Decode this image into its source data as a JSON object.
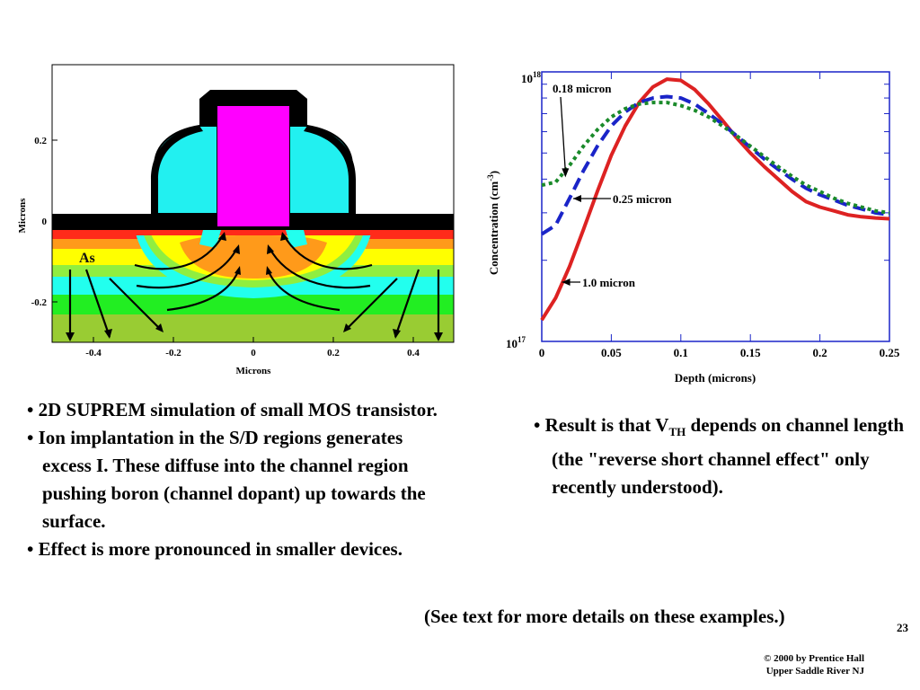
{
  "left_figure": {
    "y_ticks": [
      "0.2",
      "0",
      "-0.2"
    ],
    "x_ticks": [
      "-0.4",
      "-0.2",
      "0",
      "0.2",
      "0.4"
    ],
    "y_label": "Microns",
    "x_label": "Microns",
    "as_label": "As"
  },
  "chart_data": {
    "type": "line",
    "title": "",
    "xlabel": "Depth (microns)",
    "ylabel": "Concentration (cm-3)",
    "ylabel_base": "Concentration (cm",
    "ylabel_sup": "-3",
    "ylabel_end": ")",
    "xlim": [
      0,
      0.25
    ],
    "ylim": [
      1e+17,
      1e+18
    ],
    "log_y": true,
    "x_ticks": [
      "0",
      "0.05",
      "0.1",
      "0.15",
      "0.2",
      "0.25"
    ],
    "y_tick_top": {
      "base": "10",
      "exp": "18"
    },
    "y_tick_bottom": {
      "base": "10",
      "exp": "17"
    },
    "series": [
      {
        "name": "1.0 micron",
        "color": "#dd2222",
        "style": "solid",
        "x": [
          0,
          0.01,
          0.02,
          0.03,
          0.04,
          0.05,
          0.06,
          0.07,
          0.08,
          0.09,
          0.1,
          0.11,
          0.12,
          0.13,
          0.14,
          0.15,
          0.16,
          0.17,
          0.18,
          0.19,
          0.2,
          0.21,
          0.22,
          0.23,
          0.24,
          0.25
        ],
        "y": [
          1.2e+17,
          1.45e+17,
          1.9e+17,
          2.6e+17,
          3.6e+17,
          4.9e+17,
          6.3e+17,
          7.7e+17,
          8.8e+17,
          9.4e+17,
          9.3e+17,
          8.6e+17,
          7.6e+17,
          6.6e+17,
          5.7e+17,
          5e+17,
          4.45e+17,
          4e+17,
          3.6e+17,
          3.3e+17,
          3.15e+17,
          3.05e+17,
          2.95e+17,
          2.9e+17,
          2.87e+17,
          2.85e+17
        ]
      },
      {
        "name": "0.25 micron",
        "color": "#1a24c8",
        "style": "dashed",
        "x": [
          0,
          0.01,
          0.02,
          0.03,
          0.04,
          0.05,
          0.06,
          0.07,
          0.08,
          0.09,
          0.1,
          0.11,
          0.12,
          0.13,
          0.14,
          0.15,
          0.16,
          0.17,
          0.18,
          0.19,
          0.2,
          0.21,
          0.22,
          0.23,
          0.24,
          0.25
        ],
        "y": [
          2.5e+17,
          2.7e+17,
          3.4e+17,
          4.3e+17,
          5.3e+17,
          6.3e+17,
          7.1e+17,
          7.7e+17,
          8e+17,
          8.1e+17,
          8e+17,
          7.6e+17,
          7e+17,
          6.4e+17,
          5.8e+17,
          5.25e+17,
          4.75e+17,
          4.35e+17,
          4e+17,
          3.7e+17,
          3.5e+17,
          3.35e+17,
          3.2e+17,
          3.1e+17,
          3e+17,
          2.95e+17
        ]
      },
      {
        "name": "0.18 micron",
        "color": "#1a8a2a",
        "style": "dotted",
        "x": [
          0,
          0.01,
          0.02,
          0.03,
          0.04,
          0.05,
          0.06,
          0.07,
          0.08,
          0.09,
          0.1,
          0.11,
          0.12,
          0.13,
          0.14,
          0.15,
          0.16,
          0.17,
          0.18,
          0.19,
          0.2,
          0.21,
          0.22,
          0.23,
          0.24,
          0.25
        ],
        "y": [
          3.8e+17,
          3.9e+17,
          4.5e+17,
          5.3e+17,
          6.1e+17,
          6.8e+17,
          7.3e+17,
          7.6e+17,
          7.7e+17,
          7.7e+17,
          7.5e+17,
          7.2e+17,
          6.8e+17,
          6.3e+17,
          5.8e+17,
          5.3e+17,
          4.85e+17,
          4.45e+17,
          4.1e+17,
          3.8e+17,
          3.6e+17,
          3.4e+17,
          3.25e+17,
          3.15e+17,
          3.05e+17,
          3e+17
        ]
      }
    ],
    "annotations": [
      {
        "text": "0.18 micron",
        "x": 0.017,
        "y": 4e+17
      },
      {
        "text": "0.25 micron",
        "x": 0.02,
        "y": 3.4e+17
      },
      {
        "text": "1.0 micron",
        "x": 0.012,
        "y": 1.55e+17
      }
    ]
  },
  "left_bullets": [
    "• 2D SUPREM simulation of small MOS transistor.",
    "• Ion implantation in the S/D regions generates excess I. These diffuse into the channel region pushing boron (channel dopant) up towards the surface.",
    "• Effect is more pronounced in smaller devices."
  ],
  "result": {
    "prefix": "• Result is that V",
    "sub": "TH",
    "suffix": " depends on channel length (the \"reverse short channel effect\" only recently understood)."
  },
  "see_text": "(See text for more details on these examples.)",
  "page_number": "23",
  "copyright": [
    "© 2000 by Prentice Hall",
    "Upper Saddle River NJ"
  ]
}
